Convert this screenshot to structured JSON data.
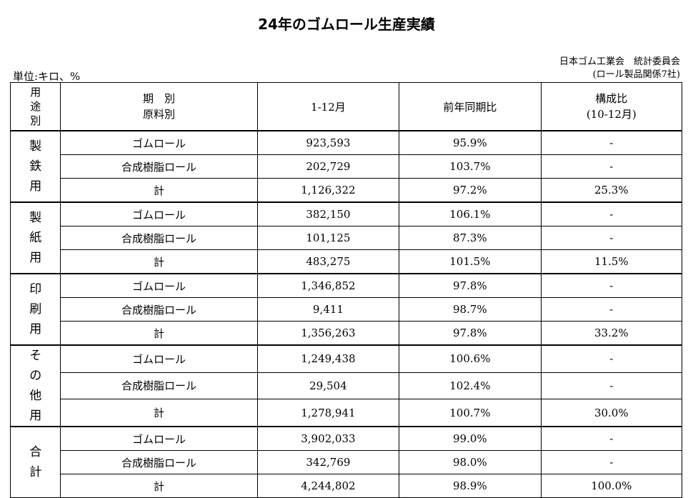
{
  "title": "24年のゴムロール生産実績",
  "source": {
    "line1": "日本ゴム工業会　統計委員会",
    "line2": "(ロール製品関係7社)"
  },
  "unit": "単位:キロ、%",
  "header": {
    "corner": [
      "用",
      "途",
      "別"
    ],
    "category": [
      "期　別",
      "原料別"
    ],
    "period": "1-12月",
    "yoy": "前年同期比",
    "share": [
      "構成比",
      "(10-12月)"
    ]
  },
  "groups": [
    {
      "label": [
        "製",
        "鉄",
        "用"
      ],
      "rows": [
        {
          "type": "ゴムロール",
          "value": "923,593",
          "yoy": "95.9%",
          "share": "-"
        },
        {
          "type": "合成樹脂ロール",
          "value": "202,729",
          "yoy": "103.7%",
          "share": "-"
        },
        {
          "type": "計",
          "value": "1,126,322",
          "yoy": "97.2%",
          "share": "25.3%"
        }
      ]
    },
    {
      "label": [
        "製",
        "紙",
        "用"
      ],
      "rows": [
        {
          "type": "ゴムロール",
          "value": "382,150",
          "yoy": "106.1%",
          "share": "-"
        },
        {
          "type": "合成樹脂ロール",
          "value": "101,125",
          "yoy": "87.3%",
          "share": "-"
        },
        {
          "type": "計",
          "value": "483,275",
          "yoy": "101.5%",
          "share": "11.5%"
        }
      ]
    },
    {
      "label": [
        "印",
        "刷",
        "用"
      ],
      "rows": [
        {
          "type": "ゴムロール",
          "value": "1,346,852",
          "yoy": "97.8%",
          "share": "-"
        },
        {
          "type": "合成樹脂ロール",
          "value": "9,411",
          "yoy": "98.7%",
          "share": "-"
        },
        {
          "type": "計",
          "value": "1,356,263",
          "yoy": "97.8%",
          "share": "33.2%"
        }
      ]
    },
    {
      "label": [
        "そ",
        "の",
        "他",
        "用"
      ],
      "rows": [
        {
          "type": "ゴムロール",
          "value": "1,249,438",
          "yoy": "100.6%",
          "share": "-"
        },
        {
          "type": "合成樹脂ロール",
          "value": "29,504",
          "yoy": "102.4%",
          "share": "-"
        },
        {
          "type": "計",
          "value": "1,278,941",
          "yoy": "100.7%",
          "share": "30.0%"
        }
      ]
    },
    {
      "label": [
        "合",
        "計"
      ],
      "rows": [
        {
          "type": "ゴムロール",
          "value": "3,902,033",
          "yoy": "99.0%",
          "share": "-"
        },
        {
          "type": "合成樹脂ロール",
          "value": "342,769",
          "yoy": "98.0%",
          "share": "-"
        },
        {
          "type": "計",
          "value": "4,244,802",
          "yoy": "98.9%",
          "share": "100.0%"
        }
      ]
    }
  ]
}
